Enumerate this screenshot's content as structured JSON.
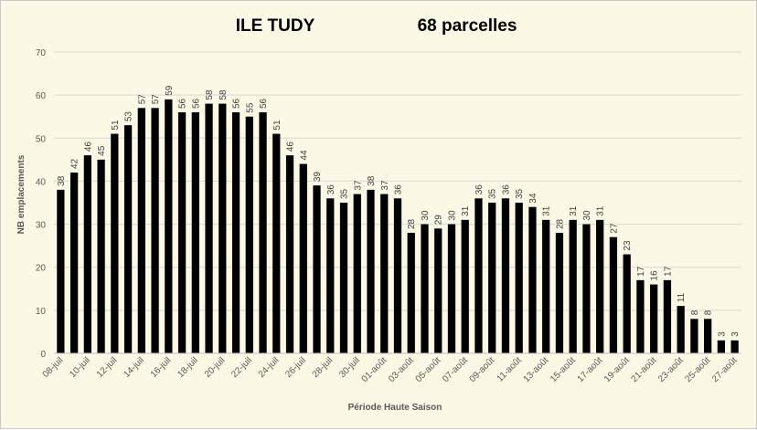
{
  "chart_data": {
    "type": "bar",
    "title": "ILE TUDY",
    "subtitle": "68 parcelles",
    "xlabel": "Période Haute Saison",
    "ylabel": "NB emplacements",
    "ylim": [
      0,
      70
    ],
    "yticks": [
      0,
      10,
      20,
      30,
      40,
      50,
      60,
      70
    ],
    "grid": true,
    "legend": "none",
    "bar_color": "#000000",
    "categories": [
      "08-juil",
      "09-juil",
      "10-juil",
      "11-juil",
      "12-juil",
      "13-juil",
      "14-juil",
      "15-juil",
      "16-juil",
      "17-juil",
      "18-juil",
      "19-juil",
      "20-juil",
      "21-juil",
      "22-juil",
      "23-juil",
      "24-juil",
      "25-juil",
      "26-juil",
      "27-juil",
      "28-juil",
      "29-juil",
      "30-juil",
      "31-juil",
      "01-août",
      "02-août",
      "03-août",
      "04-août",
      "05-août",
      "06-août",
      "07-août",
      "08-août",
      "09-août",
      "10-août",
      "11-août",
      "12-août",
      "13-août",
      "14-août",
      "15-août",
      "16-août",
      "17-août",
      "18-août",
      "19-août",
      "20-août",
      "21-août",
      "22-août",
      "23-août",
      "24-août",
      "25-août",
      "26-août",
      "27-août"
    ],
    "values": [
      38,
      42,
      46,
      45,
      51,
      53,
      57,
      57,
      59,
      56,
      56,
      58,
      58,
      56,
      55,
      56,
      51,
      46,
      44,
      39,
      36,
      35,
      37,
      38,
      37,
      36,
      28,
      30,
      29,
      30,
      31,
      36,
      35,
      36,
      35,
      34,
      31,
      28,
      31,
      30,
      31,
      27,
      23,
      17,
      16,
      17,
      11,
      8,
      8,
      3,
      3
    ]
  }
}
